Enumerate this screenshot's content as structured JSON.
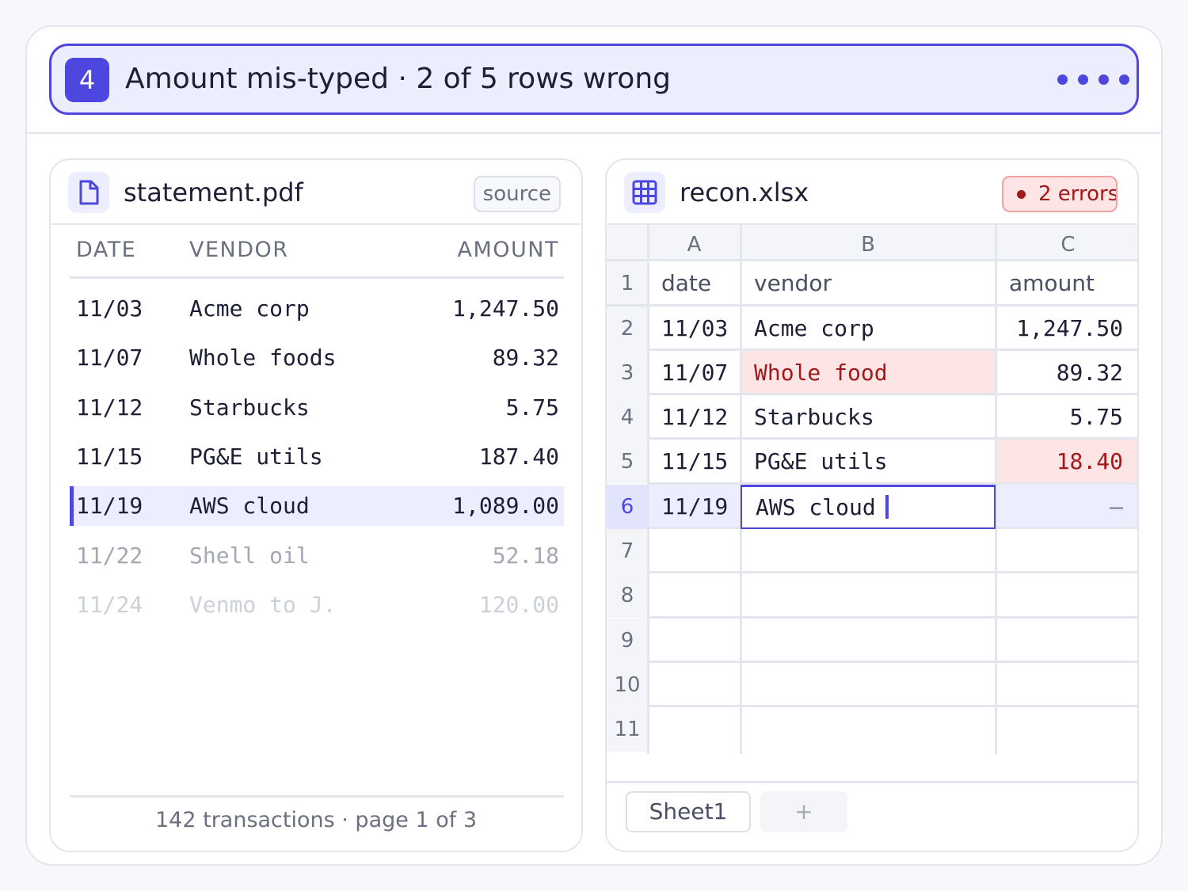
{
  "step": {
    "number": "4",
    "title": "Amount mis-typed · 2 of 5 rows wrong",
    "progress_dots": 4,
    "accent_color": "#4d46df"
  },
  "statement": {
    "icon": "document-icon",
    "filename": "statement.pdf",
    "badge": "source",
    "columns": [
      "DATE",
      "VENDOR",
      "AMOUNT"
    ],
    "rows": [
      {
        "date": "11/03",
        "vendor": "Acme corp",
        "amount": "1,247.50"
      },
      {
        "date": "11/07",
        "vendor": "Whole foods",
        "amount": "89.32"
      },
      {
        "date": "11/12",
        "vendor": "Starbucks",
        "amount": "5.75"
      },
      {
        "date": "11/15",
        "vendor": "PG&E utils",
        "amount": "187.40"
      },
      {
        "date": "11/19",
        "vendor": "AWS cloud",
        "amount": "1,089.00"
      },
      {
        "date": "11/22",
        "vendor": "Shell oil",
        "amount": "52.18"
      },
      {
        "date": "11/24",
        "vendor": "Venmo to J.",
        "amount": "120.00"
      }
    ],
    "selected_row": 4,
    "footer": "142 transactions · page 1 of 3"
  },
  "recon": {
    "icon": "grid-icon",
    "filename": "recon.xlsx",
    "error_badge": "2 errors",
    "error_color": "#a31919",
    "col_letters": [
      "A",
      "B",
      "C"
    ],
    "row_numbers": [
      "1",
      "2",
      "3",
      "4",
      "5",
      "6",
      "7",
      "8",
      "9",
      "10",
      "11"
    ],
    "header_row": {
      "a": "date",
      "b": "vendor",
      "c": "amount"
    },
    "rows": [
      {
        "a": "11/03",
        "b": "Acme corp",
        "c": "1,247.50"
      },
      {
        "a": "11/07",
        "b": "Whole food",
        "c": "89.32"
      },
      {
        "a": "11/12",
        "b": "Starbucks",
        "c": "5.75"
      },
      {
        "a": "11/15",
        "b": "PG&E utils",
        "c": "18.40"
      },
      {
        "a": "11/19",
        "b": "AWS cloud",
        "c": "–"
      }
    ],
    "active_row": "6",
    "sheet_tab": "Sheet1",
    "add_sheet": "+"
  }
}
